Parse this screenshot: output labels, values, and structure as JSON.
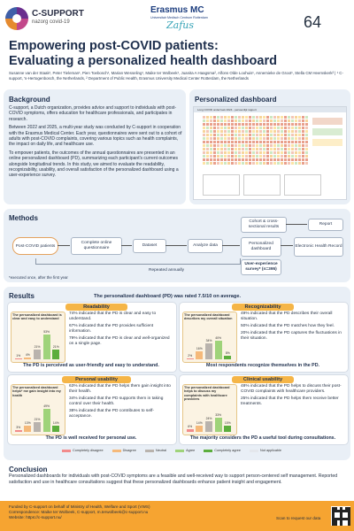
{
  "header": {
    "logo_title": "C-SUPPORT",
    "logo_subtitle": "nazorg covid-19",
    "partner_title": "Erasmus MC",
    "partner_subtitle": "Universitair Medisch Centrum Rotterdam",
    "partner_script": "Zafus",
    "poster_number": "64"
  },
  "title_line1": "Empowering post-COVID patients:",
  "title_line2": "Evaluating a personalized health dashboard",
  "authors": "Susanne van der Staak¹, Peter Tieleman¹, Pien Toebosch¹, Marian Wesseling¹, Maike ter Wolbeek¹, Juanita A Haagsma², Alfons Olde Loohuis¹, Annemieke de Groot¹, Stella CM Heemskerk²  | ¹ C-support, 's-Hertogenbosch, the Netherlands, ² Department of Public Health, Erasmus University Medical Center Rotterdam, the Netherlands",
  "background": {
    "heading": "Background",
    "p1": "C-support, a Dutch organization, provides advice and support to individuals with post-COVID symptoms, offers education for healthcare professionals, and participates in research.",
    "p2": "Between 2022 and 2025, a multi-year study was conducted by C-support in cooperation with the Erasmus Medical Center. Each year, questionnaires were sent out to a cohort of adults with post-COVID complaints, covering various topics such as health complaints, the impact on daily life, and healthcare use.",
    "p3": "To empower patients, the outcomes of the annual questionnaires are presented in an online personalized dashboard (PD), summarizing each participant's current outcomes alongside longitudinal trends. In this study, we aimed to evaluate the readability, recognizability, usability, and overall satisfaction of the personalized dashboard using a user-experience survey."
  },
  "dashboard": {
    "heading": "Personalized dashboard",
    "caption": "Long COVID onderzoek 2024 - persoonlijk rapport"
  },
  "methods": {
    "heading": "Methods",
    "flow": [
      "Post-COVID patients",
      "Complete online questionnaire",
      "Dataset",
      "Analyze data",
      "Personalized dashboard",
      "Electronic Health Record"
    ],
    "cohort": "Cohort & cross-sectional results",
    "report": "Report",
    "survey": "User-experience survey* (n=395)",
    "repeated": "Repeated annually",
    "footnote": "*executed once, after the first year"
  },
  "results": {
    "heading": "Results",
    "headline": "The personalized dashboard (PD) was rated 7.5/10 on average.",
    "cards": [
      {
        "header": "Readability",
        "chart_title": "The personalized dashboard is clear and easy to understand",
        "percents": [
          "1%",
          "4%",
          "21%",
          "53%",
          "21%"
        ],
        "bullets": [
          "74% indicated that the PD is clear and easy to understand.",
          "67% indicated that the PD provides sufficient information.",
          "79% indicated that the PD is clear and well-organized on a single page."
        ],
        "bottom": "The PD is perceived as user-friendly and easy to understand."
      },
      {
        "header": "Recognizability",
        "chart_title": "The personalized dashboard describes my overall situation",
        "percents": [
          "2%",
          "16%",
          "34%",
          "40%",
          "8%"
        ],
        "bullets": [
          "49% indicated that the PD describes their overall situation.",
          "50% indicated that the PD matches how they feel.",
          "20% indicated that the PD captures the fluctuations in their situation."
        ],
        "bottom": "Most respondents recognize themselves in the PD."
      },
      {
        "header": "Personal usability",
        "chart_title": "The personalized dashboard helps* me gain insight into my health",
        "percents": [
          "3%",
          "13%",
          "21%",
          "49%",
          "14%"
        ],
        "bullets": [
          "63% indicated that the PD helps them gain insight into their health.",
          "34% indicated that the PD supports them in taking control over their health.",
          "38% indicated that the PD contributes to self-acceptance."
        ],
        "bottom": "The PD is well received for personal use."
      },
      {
        "header": "Clinical usability",
        "chart_title": "The personalized dashboard helps to discuss my complaints with healthcare providers",
        "percents": [
          "6%",
          "14%",
          "24%",
          "33%",
          "15%"
        ],
        "bullets": [
          "48% indicated that the PD helps to discuss their post-COVID complaints with healthcare providers.",
          "25% indicated that the PD helps them receive better treatments."
        ],
        "bottom": "The majority considers the PD a useful tool during consultations."
      }
    ],
    "legend": [
      "Completely disagree",
      "Disagree",
      "Neutral",
      "Agree",
      "Completely agree",
      "Not applicable"
    ],
    "colors": [
      "#f28b8b",
      "#f5b97a",
      "#b9b3ad",
      "#9fd37a",
      "#5cae3d",
      "#e4e7ec"
    ]
  },
  "chart_data": [
    {
      "type": "bar",
      "title": "The personalized dashboard is clear and easy to understand",
      "categories": [
        "Completely disagree",
        "Disagree",
        "Neutral",
        "Agree",
        "Completely agree"
      ],
      "values": [
        1,
        4,
        21,
        53,
        21
      ]
    },
    {
      "type": "bar",
      "title": "The personalized dashboard describes my overall situation",
      "categories": [
        "Completely disagree",
        "Disagree",
        "Neutral",
        "Agree",
        "Completely agree"
      ],
      "values": [
        2,
        16,
        34,
        40,
        8
      ]
    },
    {
      "type": "bar",
      "title": "The personalized dashboard helps* me gain insight into my health",
      "categories": [
        "Completely disagree",
        "Disagree",
        "Neutral",
        "Agree",
        "Completely agree"
      ],
      "values": [
        3,
        13,
        21,
        49,
        14
      ]
    },
    {
      "type": "bar",
      "title": "The personalized dashboard helps to discuss my complaints with healthcare providers",
      "categories": [
        "Completely disagree",
        "Disagree",
        "Neutral",
        "Agree",
        "Completely agree"
      ],
      "values": [
        6,
        14,
        24,
        33,
        15
      ]
    }
  ],
  "conclusion": {
    "heading": "Conclusion",
    "text": "Personalized dashboards for individuals with post-COVID symptoms are a feasible and well-received way to support person-centered self management. Reported satisfaction and use in healthcare consultations suggest that these personalized dashboards enhance patient insight and engagement."
  },
  "footer": {
    "line1": "Funded by C-support on behalf of Ministry of Health, Welfare and Sport (VWS)",
    "line2": "Correspondence: Maike ter Wolbeek, C-support, m.terwolbeek@c-support.nu",
    "line3": "Website: https://c-support.nu/",
    "scan": "Scan to request our data"
  }
}
